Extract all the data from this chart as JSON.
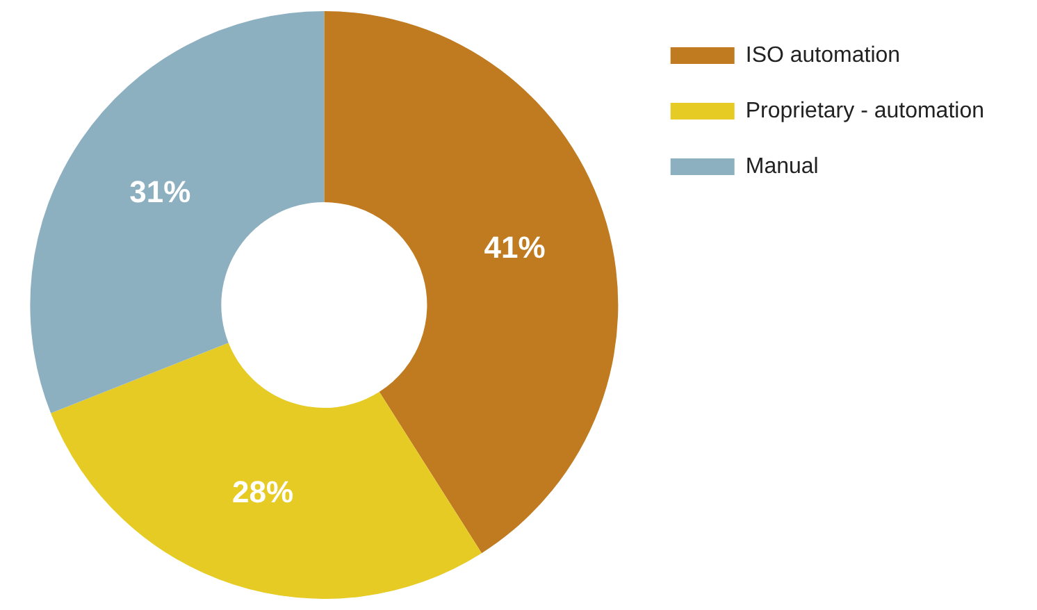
{
  "chart_data": {
    "type": "donut",
    "categories": [
      "ISO automation",
      "Proprietary - automation",
      "Manual"
    ],
    "values": [
      41,
      28,
      31
    ],
    "colors": [
      "#c07b20",
      "#e6cb25",
      "#8db0c0"
    ],
    "value_labels": [
      "41%",
      "28%",
      "31%"
    ],
    "legend": "top right"
  }
}
